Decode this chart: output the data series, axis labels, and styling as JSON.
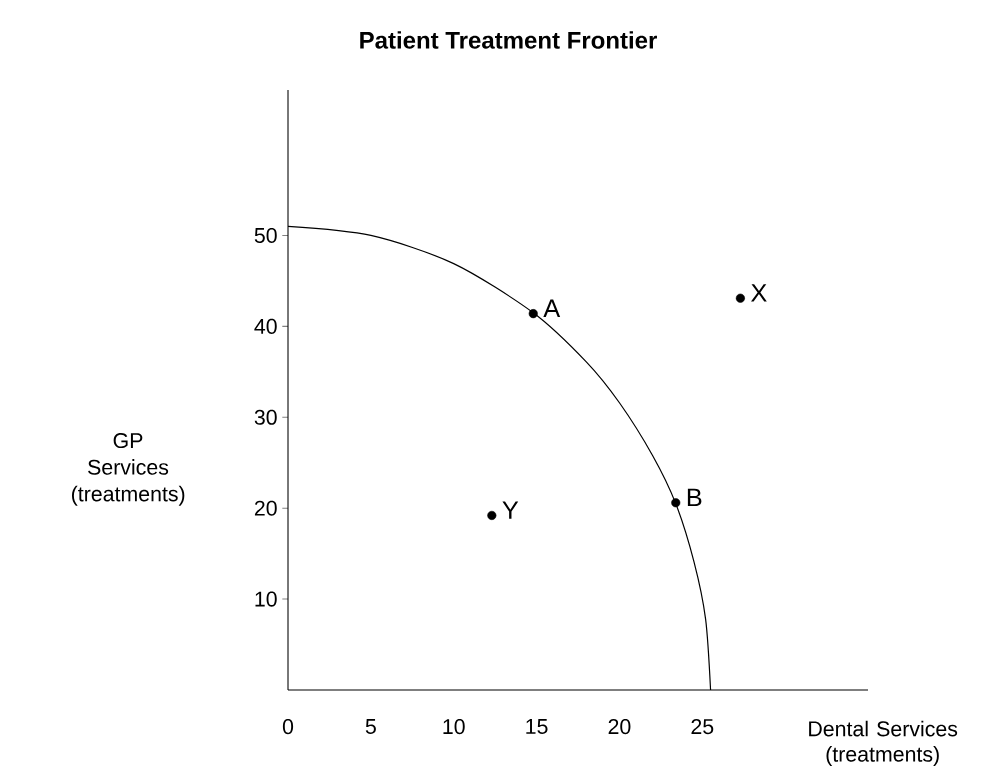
{
  "chart_data": {
    "type": "scatter",
    "title": "Patient Treatment Frontier",
    "xlabel": "Dental Services (treatments)",
    "ylabel": "GP Services (treatments)",
    "xlim": [
      0,
      35
    ],
    "ylim": [
      0,
      66
    ],
    "xticks": [
      0,
      5,
      10,
      15,
      20,
      25
    ],
    "yticks": [
      10,
      20,
      30,
      40,
      50
    ],
    "grid": false,
    "series": [
      {
        "type": "line",
        "color": "#000000",
        "marker": "none",
        "x": [
          0,
          5,
          10,
          14.8,
          18,
          20,
          22,
          23.4,
          24.5,
          25.2,
          25.5
        ],
        "values": [
          51,
          50,
          46.9,
          41.5,
          36.1,
          31.6,
          25.8,
          20.5,
          14.1,
          7.8,
          0
        ]
      },
      {
        "color": "#000000",
        "marker": "circle",
        "x": [
          14.8,
          23.4,
          12.3,
          27.3
        ],
        "values": [
          41.4,
          20.6,
          19.2,
          43.1
        ]
      }
    ],
    "annotations": [
      {
        "text": "A",
        "x": 14.8,
        "y": 41.4
      },
      {
        "text": "B",
        "x": 23.4,
        "y": 20.6
      },
      {
        "text": "Y",
        "x": 12.3,
        "y": 19.2
      },
      {
        "text": "X",
        "x": 27.3,
        "y": 43.1
      }
    ]
  }
}
